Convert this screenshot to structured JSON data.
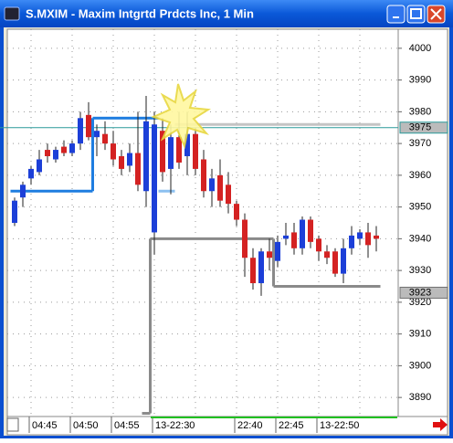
{
  "chart_data": {
    "type": "candlestick",
    "title": "S.MXIM - Maxim Intgrtd Prdcts Inc, 1 Min",
    "categories": [
      null,
      null,
      "04:45",
      null,
      null,
      null,
      null,
      "04:50",
      null,
      null,
      null,
      null,
      "04:55",
      null,
      null,
      null,
      null,
      "13-22:30",
      null,
      null,
      null,
      null,
      null,
      null,
      null,
      null,
      null,
      "22:40",
      null,
      null,
      null,
      null,
      "22:45",
      null,
      null,
      null,
      null,
      "13-22:50",
      null,
      null,
      null,
      null,
      null,
      null,
      null
    ],
    "open": [
      3945,
      3953,
      3959,
      3961,
      3968,
      3965,
      3969,
      3967,
      3970,
      3979,
      3972,
      3973,
      3970,
      3966,
      3963,
      3967,
      3955,
      3942,
      3974,
      3962,
      3972,
      3966,
      3973,
      3965,
      3955,
      3960,
      3957,
      3951,
      3946,
      3934,
      3926,
      3936,
      3933,
      3940,
      3942,
      3937,
      3946,
      3940,
      3936,
      3936,
      3929,
      3937,
      3940,
      3942,
      3941
    ],
    "high": [
      3953,
      3958,
      3963,
      3968,
      3970,
      3969,
      3971,
      3971,
      3980,
      3983,
      3976,
      3977,
      3974,
      3968,
      3970,
      3980,
      3985,
      3980,
      3978,
      3976,
      3980,
      3980,
      3975,
      3968,
      3962,
      3965,
      3961,
      3952,
      3948,
      3937,
      3937,
      3940,
      3941,
      3945,
      3945,
      3947,
      3947,
      3941,
      3938,
      3937,
      3940,
      3944,
      3943,
      3945,
      3944
    ],
    "low": [
      3944,
      3950,
      3957,
      3960,
      3964,
      3964,
      3966,
      3966,
      3968,
      3971,
      3966,
      3968,
      3963,
      3960,
      3961,
      3955,
      3950,
      3935,
      3958,
      3954,
      3962,
      3960,
      3960,
      3953,
      3950,
      3950,
      3948,
      3944,
      3928,
      3924,
      3922,
      3930,
      3931,
      3938,
      3935,
      3935,
      3937,
      3933,
      3932,
      3928,
      3926,
      3935,
      3938,
      3934,
      3936
    ],
    "close": [
      3952,
      3957,
      3962,
      3965,
      3966,
      3968,
      3967,
      3970,
      3978,
      3972,
      3974,
      3970,
      3965,
      3962,
      3967,
      3957,
      3977,
      3976,
      3961,
      3972,
      3964,
      3973,
      3962,
      3955,
      3959,
      3952,
      3951,
      3946,
      3934,
      3926,
      3936,
      3934,
      3939,
      3941,
      3937,
      3946,
      3939,
      3936,
      3934,
      3929,
      3937,
      3941,
      3942,
      3938,
      3940
    ],
    "up_color": "#1c3fd8",
    "down_color": "#d42222",
    "series": [
      {
        "color": "#1e7de0",
        "values": [
          3955,
          3955,
          3955,
          3955,
          3955,
          3955,
          3955,
          3955,
          3955,
          3955,
          3978,
          3978,
          3978,
          3978,
          3978,
          3978,
          3978,
          3978,
          null,
          null,
          null,
          null,
          null,
          null,
          null,
          null,
          null,
          null,
          null,
          null,
          null,
          null,
          null,
          null,
          null,
          null,
          null,
          null,
          null,
          null,
          null,
          null,
          null,
          null,
          null
        ]
      },
      {
        "color": "#8cc0f0",
        "values": [
          null,
          null,
          null,
          null,
          null,
          null,
          null,
          null,
          null,
          null,
          null,
          null,
          null,
          null,
          null,
          null,
          null,
          null,
          3955,
          3955,
          null,
          null,
          null,
          null,
          null,
          null,
          null,
          null,
          null,
          null,
          null,
          null,
          null,
          null,
          null,
          null,
          null,
          null,
          null,
          null,
          null,
          null,
          null,
          null,
          null
        ]
      },
      {
        "color": "#c4c4c4",
        "values": [
          null,
          null,
          null,
          null,
          null,
          null,
          null,
          null,
          null,
          null,
          null,
          null,
          null,
          null,
          null,
          null,
          null,
          null,
          null,
          null,
          3976,
          3976,
          3976,
          3976,
          3976,
          3976,
          3976,
          3976,
          3976,
          3976,
          3976,
          3976,
          3976,
          3976,
          3976,
          3976,
          3976,
          3976,
          3976,
          3976,
          3976,
          3976,
          3976,
          3976,
          3976
        ]
      },
      {
        "color": "#8a8a8a",
        "values": [
          null,
          null,
          null,
          null,
          null,
          null,
          null,
          null,
          null,
          null,
          null,
          null,
          null,
          null,
          null,
          null,
          3885,
          3940,
          3940,
          3940,
          3940,
          3940,
          3940,
          3940,
          3940,
          3940,
          3940,
          3940,
          3940,
          3940,
          3940,
          3940,
          3925,
          3925,
          3925,
          3925,
          3925,
          3925,
          3925,
          3925,
          3925,
          3925,
          3925,
          3925,
          3925
        ]
      }
    ],
    "markers": [
      {
        "value": 3975,
        "color": "#2a9a9a"
      },
      {
        "value": 3923,
        "color": "#707070"
      }
    ],
    "ylim": [
      3884,
      4006
    ],
    "yticks": [
      3890,
      3900,
      3910,
      3920,
      3930,
      3940,
      3950,
      3960,
      3970,
      3980,
      3990,
      4000
    ],
    "grid": true
  }
}
